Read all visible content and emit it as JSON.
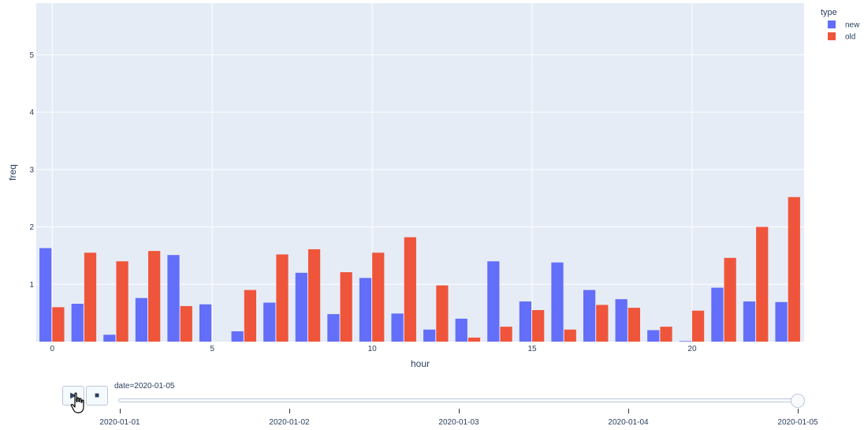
{
  "chart_data": {
    "type": "bar",
    "barmode": "group",
    "xlabel": "hour",
    "ylabel": "freq",
    "x": [
      0,
      1,
      2,
      3,
      4,
      5,
      6,
      7,
      8,
      9,
      10,
      11,
      12,
      13,
      14,
      15,
      16,
      17,
      18,
      19,
      20,
      21,
      22,
      23
    ],
    "xticks": [
      0,
      5,
      10,
      15,
      20
    ],
    "yticks": [
      1,
      2,
      3,
      4,
      5
    ],
    "xlim": [
      -0.5,
      23.5
    ],
    "ylim": [
      0,
      5.9
    ],
    "grid": true,
    "legend": {
      "title": "type",
      "position": "top-right"
    },
    "series": [
      {
        "name": "new",
        "color": "#636efa",
        "values": [
          1.63,
          0.66,
          0.12,
          0.76,
          1.51,
          0.65,
          0.18,
          0.68,
          1.2,
          0.48,
          1.11,
          0.49,
          0.21,
          0.4,
          1.4,
          0.7,
          1.38,
          0.9,
          0.74,
          0.2,
          0.01,
          0.94,
          0.7,
          0.69
        ]
      },
      {
        "name": "old",
        "color": "#ef553b",
        "values": [
          0.6,
          1.55,
          1.4,
          1.58,
          0.62,
          0.0,
          0.9,
          1.52,
          1.61,
          1.21,
          1.55,
          1.82,
          0.98,
          0.07,
          0.26,
          0.55,
          0.21,
          0.64,
          0.59,
          0.26,
          0.54,
          1.46,
          2.0,
          2.52
        ]
      }
    ]
  },
  "animation": {
    "play_icon": "▶",
    "stop_icon": "■",
    "current_label": "date=2020-01-05",
    "steps": [
      "2020-01-01",
      "2020-01-02",
      "2020-01-03",
      "2020-01-04",
      "2020-01-05"
    ],
    "current_index": 4
  },
  "colors": {
    "plot_bg": "#e5ecf6",
    "grid": "#ffffff",
    "text": "#2a3f5f"
  }
}
